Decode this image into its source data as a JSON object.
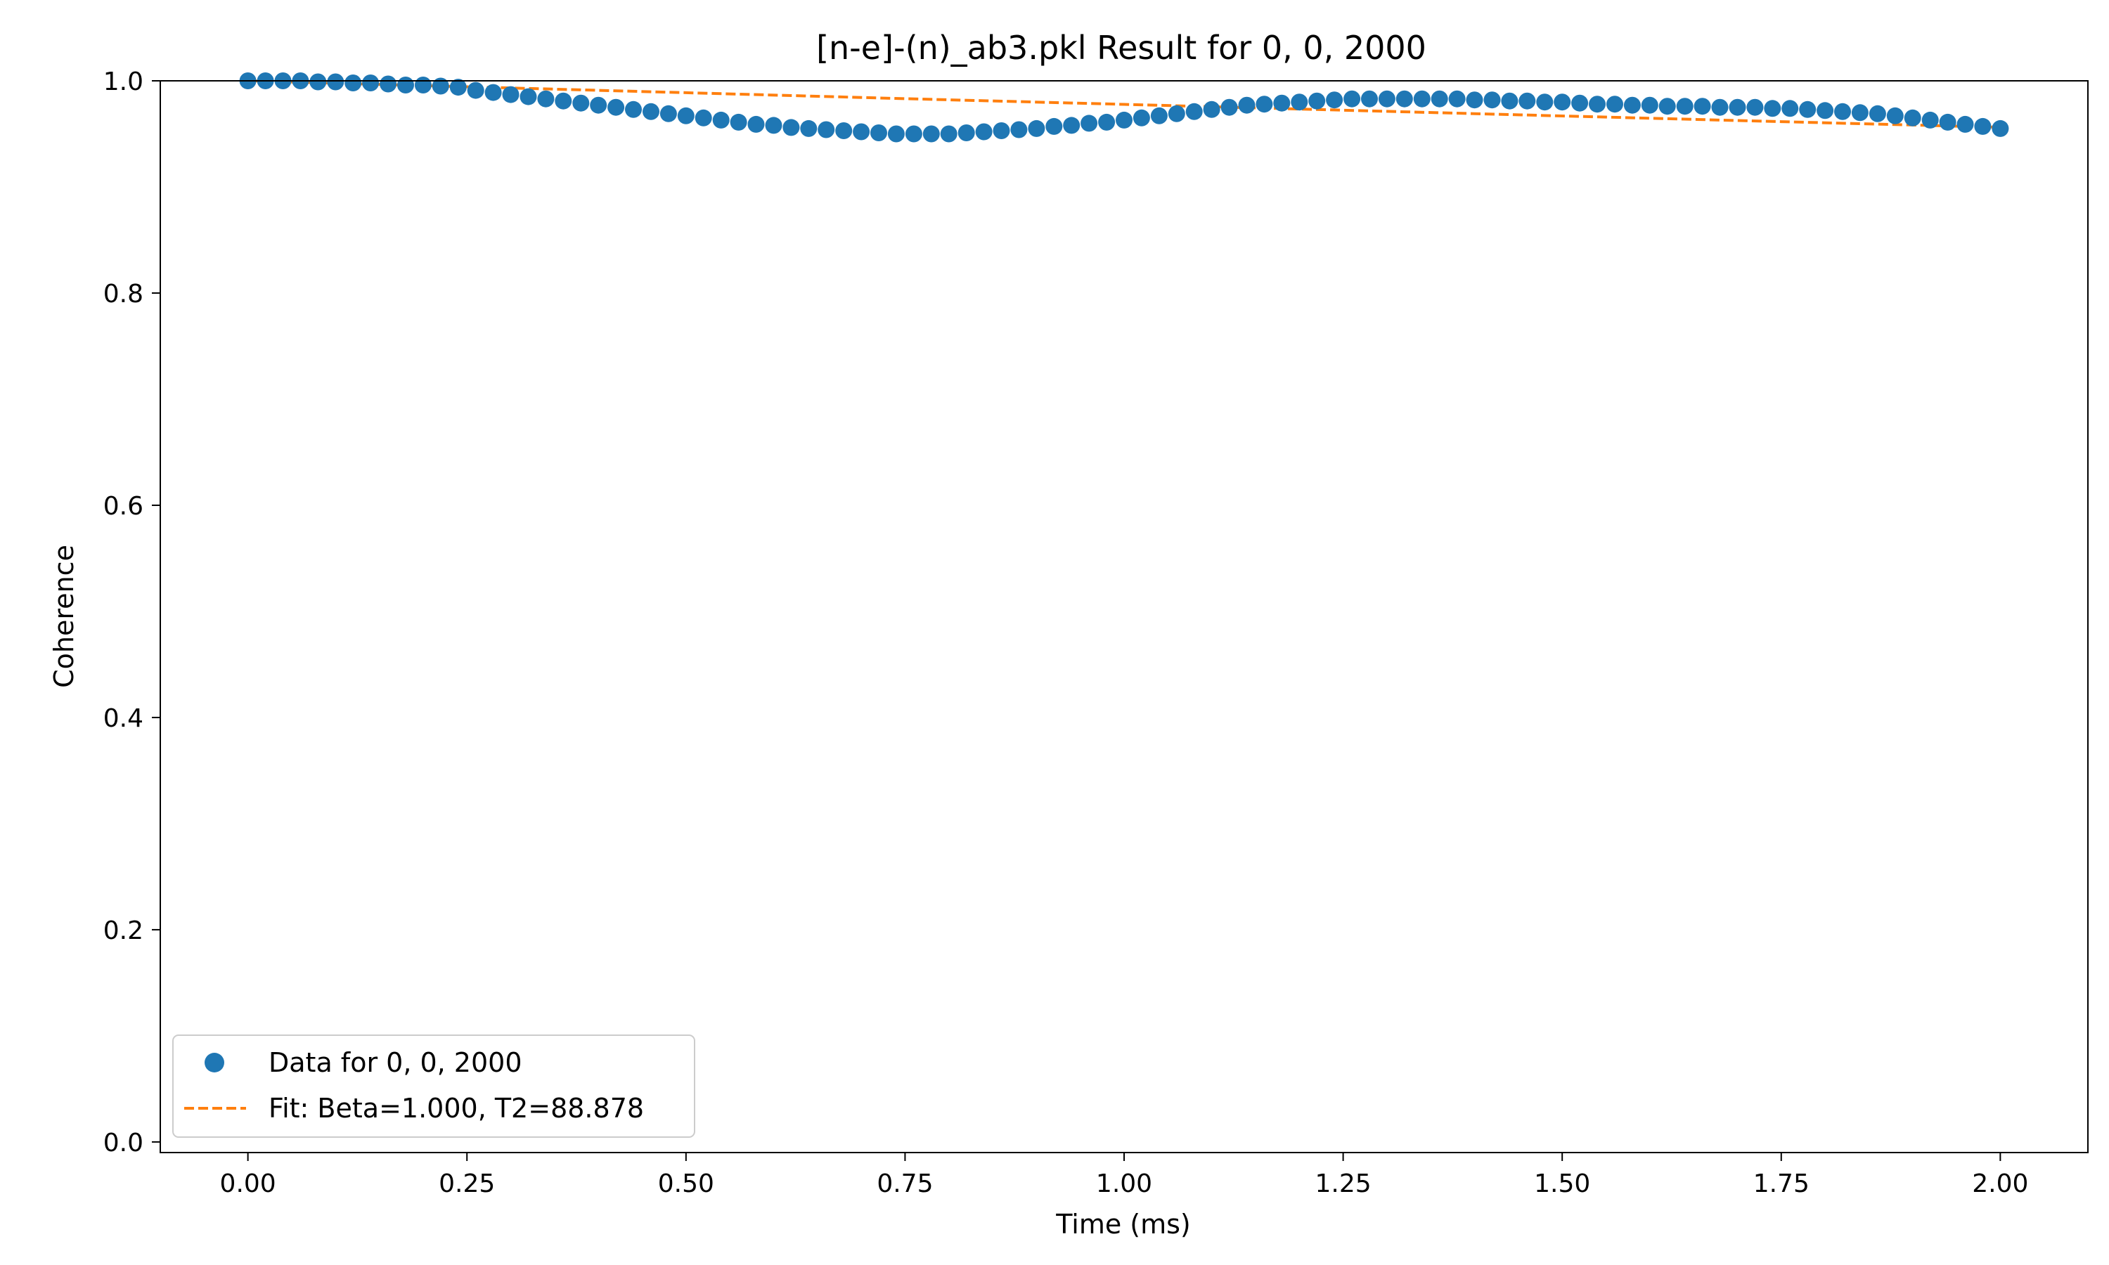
{
  "chart_data": {
    "type": "scatter",
    "title": "[n-e]-(n)_ab3.pkl Result for 0, 0, 2000",
    "xlabel": "Time (ms)",
    "ylabel": "Coherence",
    "xlim": [
      -0.1,
      2.1
    ],
    "ylim": [
      -0.01,
      1.0
    ],
    "xticks": [
      0.0,
      0.25,
      0.5,
      0.75,
      1.0,
      1.25,
      1.5,
      1.75,
      2.0
    ],
    "xtick_labels": [
      "0.00",
      "0.25",
      "0.50",
      "0.75",
      "1.00",
      "1.25",
      "1.50",
      "1.75",
      "2.00"
    ],
    "yticks": [
      0.0,
      0.2,
      0.4,
      0.6,
      0.8,
      1.0
    ],
    "ytick_labels": [
      "0.0",
      "0.2",
      "0.4",
      "0.6",
      "0.8",
      "1.0"
    ],
    "grid": false,
    "legend_position": "lower-left",
    "series": [
      {
        "name": "Data for 0, 0, 2000",
        "kind": "scatter",
        "color": "#1f77b4",
        "x": [
          0.0,
          0.02,
          0.04,
          0.06,
          0.08,
          0.1,
          0.12,
          0.14,
          0.16,
          0.18,
          0.2,
          0.22,
          0.24,
          0.26,
          0.28,
          0.3,
          0.32,
          0.34,
          0.36,
          0.38,
          0.4,
          0.42,
          0.44,
          0.46,
          0.48,
          0.5,
          0.52,
          0.54,
          0.56,
          0.58,
          0.6,
          0.62,
          0.64,
          0.66,
          0.68,
          0.7,
          0.72,
          0.74,
          0.76,
          0.78,
          0.8,
          0.82,
          0.84,
          0.86,
          0.88,
          0.9,
          0.92,
          0.94,
          0.96,
          0.98,
          1.0,
          1.02,
          1.04,
          1.06,
          1.08,
          1.1,
          1.12,
          1.14,
          1.16,
          1.18,
          1.2,
          1.22,
          1.24,
          1.26,
          1.28,
          1.3,
          1.32,
          1.34,
          1.36,
          1.38,
          1.4,
          1.42,
          1.44,
          1.46,
          1.48,
          1.5,
          1.52,
          1.54,
          1.56,
          1.58,
          1.6,
          1.62,
          1.64,
          1.66,
          1.68,
          1.7,
          1.72,
          1.74,
          1.76,
          1.78,
          1.8,
          1.82,
          1.84,
          1.86,
          1.88,
          1.9,
          1.92,
          1.94,
          1.96,
          1.98,
          2.0
        ],
        "y": [
          1.0,
          1.0,
          1.0,
          1.0,
          0.999,
          0.999,
          0.998,
          0.998,
          0.997,
          0.996,
          0.996,
          0.995,
          0.994,
          0.991,
          0.989,
          0.987,
          0.985,
          0.983,
          0.981,
          0.979,
          0.977,
          0.975,
          0.973,
          0.971,
          0.969,
          0.967,
          0.965,
          0.963,
          0.961,
          0.959,
          0.958,
          0.956,
          0.955,
          0.954,
          0.953,
          0.952,
          0.951,
          0.95,
          0.95,
          0.95,
          0.95,
          0.951,
          0.952,
          0.953,
          0.954,
          0.955,
          0.957,
          0.958,
          0.96,
          0.961,
          0.963,
          0.965,
          0.967,
          0.969,
          0.971,
          0.973,
          0.975,
          0.977,
          0.978,
          0.979,
          0.98,
          0.981,
          0.982,
          0.983,
          0.983,
          0.983,
          0.983,
          0.983,
          0.983,
          0.983,
          0.982,
          0.982,
          0.981,
          0.981,
          0.98,
          0.98,
          0.979,
          0.978,
          0.978,
          0.977,
          0.977,
          0.976,
          0.976,
          0.976,
          0.975,
          0.975,
          0.975,
          0.974,
          0.974,
          0.973,
          0.972,
          0.971,
          0.97,
          0.969,
          0.967,
          0.965,
          0.963,
          0.961,
          0.959,
          0.957,
          0.955
        ]
      },
      {
        "name": "Fit: Beta=1.000, T2=88.878",
        "kind": "line",
        "style": "dashed",
        "color": "#ff7f0e",
        "x": [
          0.0,
          0.25,
          0.5,
          0.75,
          1.0,
          1.25,
          1.5,
          1.75,
          2.0
        ],
        "y": [
          1.0,
          0.9944,
          0.9888,
          0.9832,
          0.9778,
          0.9723,
          0.9669,
          0.9615,
          0.9562
        ]
      }
    ]
  }
}
